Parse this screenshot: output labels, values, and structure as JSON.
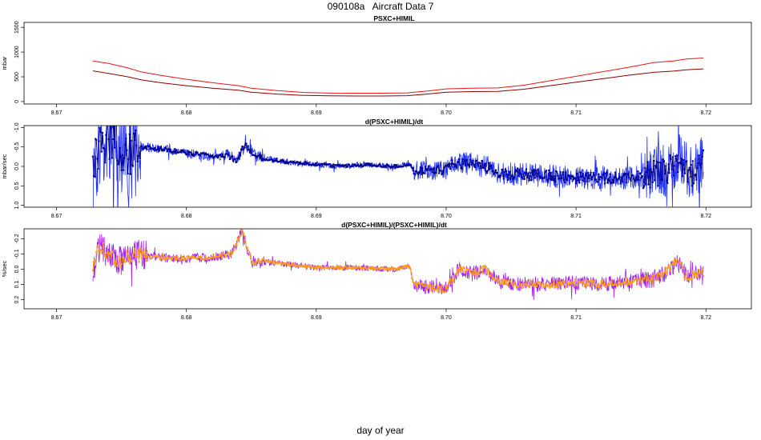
{
  "page": {
    "title": "090108a   Aircraft Data 7",
    "x_axis_title": "day of year"
  },
  "chart_data": [
    {
      "type": "line",
      "title": "PSXC+HIMIL",
      "ylabel": "mbar",
      "xlim": [
        8.6675,
        8.7235
      ],
      "ylim": [
        -50,
        1600
      ],
      "y_ticks": [
        0,
        500,
        1000,
        1500
      ],
      "y_tick_labels": [
        "0",
        "500",
        "1000",
        "1500"
      ],
      "x_ticks": [
        8.67,
        8.68,
        8.69,
        8.7,
        8.71,
        8.72
      ],
      "x_tick_labels": [
        "8.67",
        "8.68",
        "8.69",
        "8.70",
        "8.71",
        "8.72"
      ],
      "colors": [
        "#e8161b",
        "#8b0000"
      ],
      "series": [
        {
          "x": [
            8.6728,
            8.674,
            8.6755,
            8.6765,
            8.678,
            8.68,
            8.682,
            8.684,
            8.685,
            8.687,
            8.689,
            8.691,
            8.693,
            8.695,
            8.697,
            8.6985,
            8.7,
            8.702,
            8.704,
            8.706,
            8.708,
            8.71,
            8.712,
            8.714,
            8.716,
            8.7175,
            8.7185,
            8.7198
          ],
          "y": [
            820,
            770,
            680,
            600,
            530,
            450,
            380,
            320,
            270,
            220,
            185,
            170,
            168,
            168,
            175,
            210,
            255,
            270,
            275,
            330,
            420,
            510,
            600,
            690,
            790,
            820,
            860,
            880
          ]
        },
        {
          "x": [
            8.6728,
            8.674,
            8.6755,
            8.6765,
            8.678,
            8.68,
            8.682,
            8.684,
            8.685,
            8.687,
            8.689,
            8.691,
            8.693,
            8.695,
            8.697,
            8.6985,
            8.7,
            8.702,
            8.704,
            8.706,
            8.708,
            8.71,
            8.712,
            8.714,
            8.716,
            8.7175,
            8.7185,
            8.7198
          ],
          "y": [
            620,
            570,
            500,
            440,
            380,
            320,
            270,
            230,
            190,
            150,
            125,
            115,
            112,
            112,
            118,
            150,
            190,
            200,
            205,
            250,
            320,
            390,
            460,
            530,
            590,
            615,
            640,
            660
          ]
        }
      ]
    },
    {
      "type": "line",
      "title": "d(PSXC+HIMIL)/dt",
      "ylabel": "mbar/sec",
      "xlim": [
        8.6675,
        8.7235
      ],
      "ylim": [
        1.05,
        -1.05
      ],
      "y_ticks": [
        -1.0,
        -0.5,
        0.0,
        0.5,
        1.0
      ],
      "y_tick_labels": [
        "-1.0",
        "-0.5",
        "0.0",
        "0.5",
        "1.0"
      ],
      "x_ticks": [
        8.67,
        8.68,
        8.69,
        8.7,
        8.71,
        8.72
      ],
      "x_tick_labels": [
        "8.67",
        "8.68",
        "8.69",
        "8.70",
        "8.71",
        "8.72"
      ],
      "colors": [
        "#1f2fff",
        "#00008b"
      ],
      "trend": {
        "x": [
          8.6728,
          8.6735,
          8.6745,
          8.6755,
          8.6765,
          8.678,
          8.68,
          8.682,
          8.6832,
          8.6838,
          8.6845,
          8.6852,
          8.686,
          8.688,
          8.69,
          8.692,
          8.694,
          8.696,
          8.6972,
          8.6975,
          8.699,
          8.7,
          8.7005,
          8.701,
          8.702,
          8.703,
          8.7045,
          8.706,
          8.708,
          8.71,
          8.712,
          8.714,
          8.716,
          8.717,
          8.718,
          8.719,
          8.7198
        ],
        "y": [
          0.0,
          -0.6,
          -0.7,
          -0.3,
          -0.5,
          -0.45,
          -0.35,
          -0.25,
          -0.3,
          -0.1,
          -0.55,
          -0.3,
          -0.2,
          -0.1,
          -0.05,
          0.0,
          -0.05,
          0.0,
          -0.05,
          0.1,
          0.1,
          0.1,
          -0.05,
          -0.1,
          -0.05,
          0.0,
          0.2,
          0.2,
          0.25,
          0.3,
          0.3,
          0.3,
          0.2,
          0.1,
          -0.15,
          0.2,
          -0.2
        ]
      },
      "noise": [
        {
          "x": [
            8.6728,
            8.6765
          ],
          "amplitude": 1.2
        },
        {
          "x": [
            8.6765,
            8.683
          ],
          "amplitude": 0.12
        },
        {
          "x": [
            8.683,
            8.686
          ],
          "amplitude": 0.15
        },
        {
          "x": [
            8.686,
            8.6975
          ],
          "amplitude": 0.08
        },
        {
          "x": [
            8.6975,
            8.701
          ],
          "amplitude": 0.25
        },
        {
          "x": [
            8.701,
            8.715
          ],
          "amplitude": 0.3
        },
        {
          "x": [
            8.715,
            8.72
          ],
          "amplitude": 0.7
        }
      ]
    },
    {
      "type": "line",
      "title": "d(PSXC+HIMIL)/(PSXC+HIMIL)/dt",
      "ylabel": "%/sec",
      "xlim": [
        8.6675,
        8.7235
      ],
      "ylim": [
        0.26,
        -0.265
      ],
      "y_ticks": [
        -0.2,
        -0.1,
        0.0,
        0.1,
        0.2
      ],
      "y_tick_labels": [
        "-0.2",
        "-0.1",
        "0.0",
        "0.1",
        "0.2"
      ],
      "x_ticks": [
        8.67,
        8.68,
        8.69,
        8.7,
        8.71,
        8.72
      ],
      "x_tick_labels": [
        "8.67",
        "8.68",
        "8.69",
        "8.70",
        "8.71",
        "8.72"
      ],
      "colors": [
        "#a020f0",
        "#ff9a1a"
      ],
      "trend": {
        "x": [
          8.6728,
          8.6733,
          8.674,
          8.675,
          8.676,
          8.6775,
          8.68,
          8.682,
          8.6835,
          8.6843,
          8.685,
          8.686,
          8.688,
          8.69,
          8.693,
          8.696,
          8.6972,
          8.6975,
          8.699,
          8.7,
          8.701,
          8.702,
          8.703,
          8.704,
          8.706,
          8.708,
          8.71,
          8.712,
          8.714,
          8.7155,
          8.7165,
          8.7178,
          8.7185,
          8.7198
        ],
        "y": [
          0.0,
          -0.15,
          -0.1,
          -0.05,
          -0.1,
          -0.08,
          -0.07,
          -0.08,
          -0.1,
          -0.25,
          -0.05,
          -0.05,
          -0.03,
          -0.01,
          -0.01,
          0.0,
          -0.02,
          0.1,
          0.12,
          0.13,
          0.0,
          0.03,
          0.0,
          0.08,
          0.1,
          0.1,
          0.09,
          0.1,
          0.08,
          0.07,
          0.05,
          -0.05,
          0.05,
          0.02
        ]
      },
      "noise": [
        {
          "x": [
            8.6728,
            8.677
          ],
          "amplitude": 0.1
        },
        {
          "x": [
            8.677,
            8.6835
          ],
          "amplitude": 0.03
        },
        {
          "x": [
            8.6835,
            8.686
          ],
          "amplitude": 0.04
        },
        {
          "x": [
            8.686,
            8.6975
          ],
          "amplitude": 0.02
        },
        {
          "x": [
            8.6975,
            8.715
          ],
          "amplitude": 0.05
        },
        {
          "x": [
            8.715,
            8.72
          ],
          "amplitude": 0.06
        }
      ]
    }
  ]
}
